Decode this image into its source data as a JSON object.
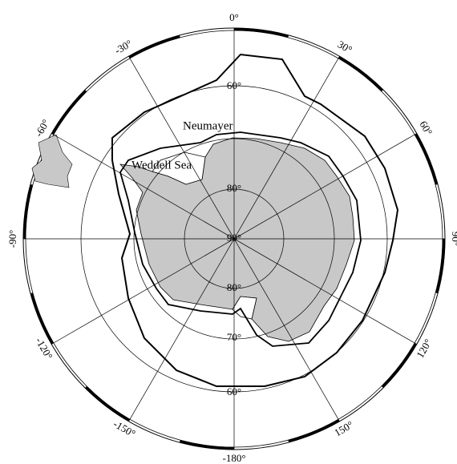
{
  "longitude_labels": [
    "0°",
    "30°",
    "60°",
    "90°",
    "120°",
    "150°",
    "-180°",
    "-150°",
    "-120°",
    "-90°",
    "-60°",
    "-30°"
  ],
  "latitude_labels": [
    "60°",
    "80°",
    "90°",
    "80°",
    "70°",
    "60°"
  ],
  "places": [
    "Neumayer",
    "Weddell Sea"
  ]
}
